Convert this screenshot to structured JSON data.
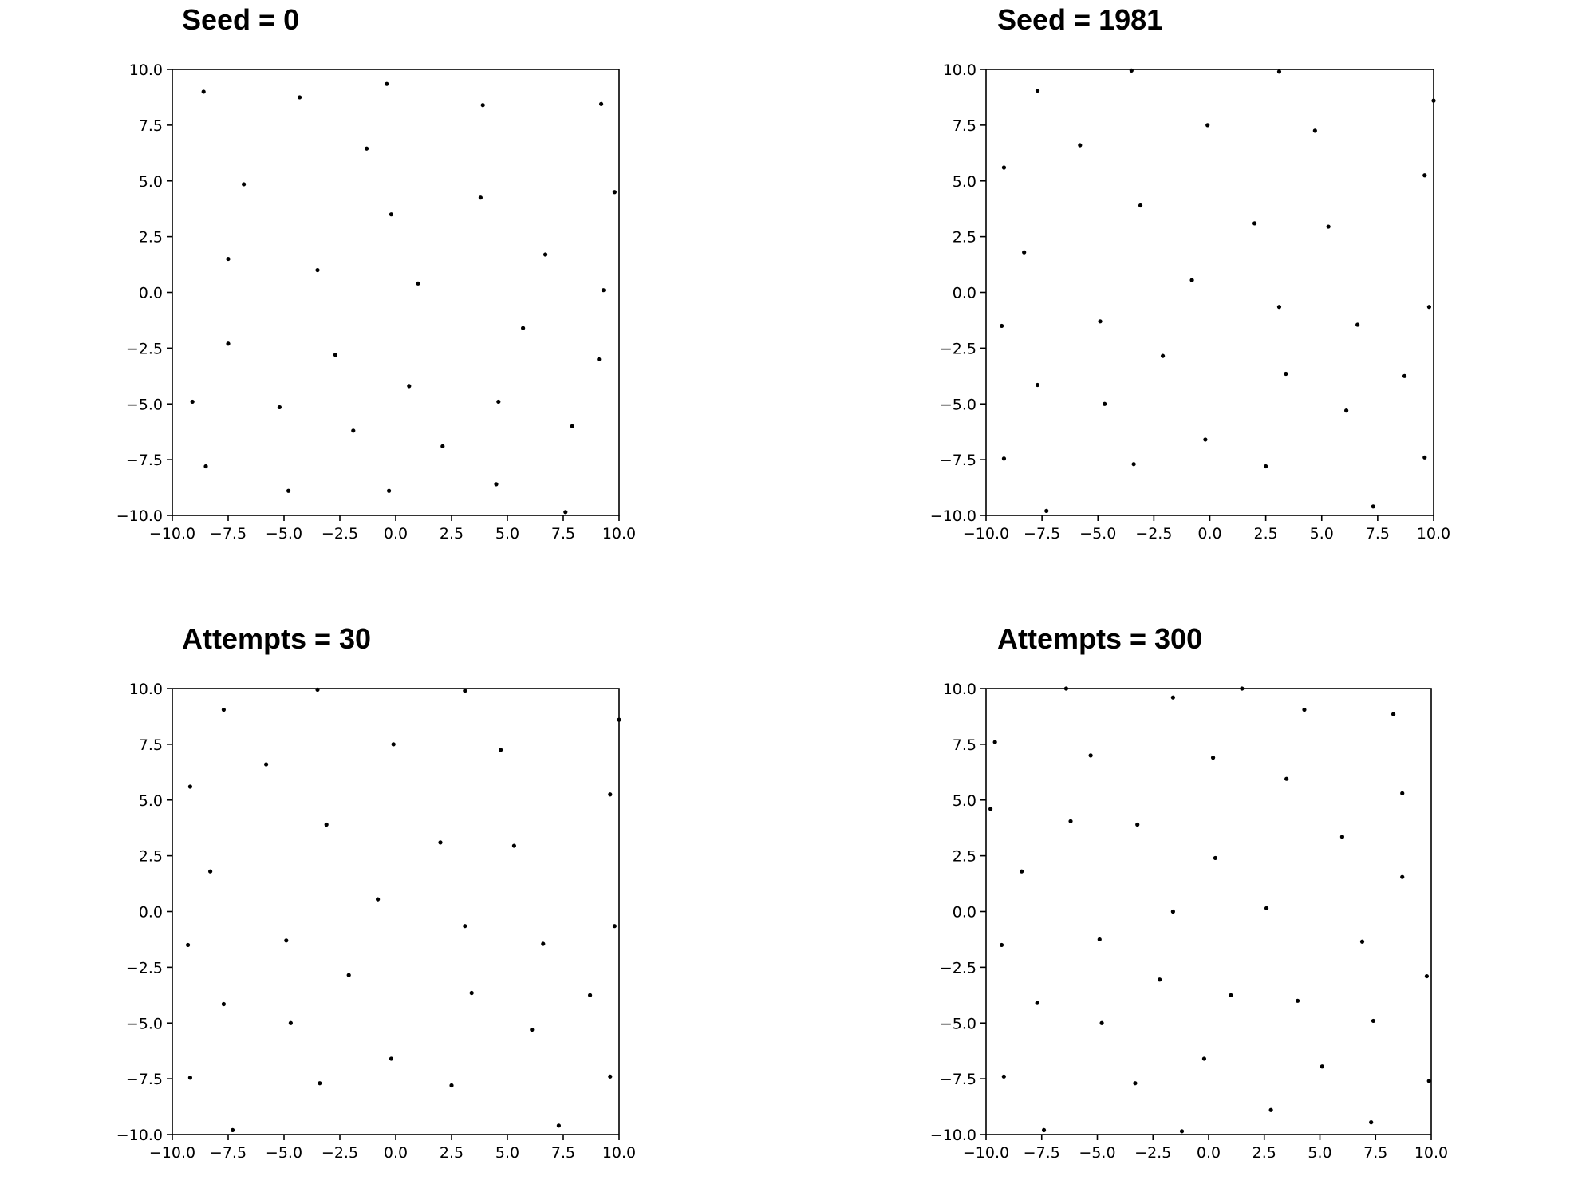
{
  "figure": {
    "panels": [
      {
        "title": "Seed = 0"
      },
      {
        "title": "Seed = 1981"
      },
      {
        "title": "Attempts = 30"
      },
      {
        "title": "Attempts = 300"
      }
    ]
  },
  "chart_data": [
    {
      "type": "scatter",
      "title": "Seed = 0",
      "xlabel": "",
      "ylabel": "",
      "xlim": [
        -10,
        10
      ],
      "ylim": [
        -10,
        10
      ],
      "xticks": [
        -10,
        -7.5,
        -5,
        -2.5,
        0,
        2.5,
        5,
        7.5,
        10
      ],
      "yticks": [
        -10,
        -7.5,
        -5,
        -2.5,
        0,
        2.5,
        5,
        7.5,
        10
      ],
      "tick_labels": [
        "−10.0",
        "−7.5",
        "−5.0",
        "−2.5",
        "0.0",
        "2.5",
        "5.0",
        "7.5",
        "10.0"
      ],
      "grid": false,
      "marker_color": "#000000",
      "points": [
        [
          -8.6,
          9.0
        ],
        [
          -4.3,
          8.75
        ],
        [
          -0.4,
          9.35
        ],
        [
          3.9,
          8.4
        ],
        [
          9.2,
          8.45
        ],
        [
          -1.3,
          6.45
        ],
        [
          -6.8,
          4.85
        ],
        [
          3.8,
          4.25
        ],
        [
          9.8,
          4.5
        ],
        [
          -0.2,
          3.5
        ],
        [
          -7.5,
          1.5
        ],
        [
          6.7,
          1.7
        ],
        [
          -3.5,
          1.0
        ],
        [
          1.0,
          0.4
        ],
        [
          9.3,
          0.1
        ],
        [
          5.7,
          -1.6
        ],
        [
          -7.5,
          -2.3
        ],
        [
          -2.7,
          -2.8
        ],
        [
          9.1,
          -3.0
        ],
        [
          0.6,
          -4.2
        ],
        [
          -9.1,
          -4.9
        ],
        [
          -5.2,
          -5.15
        ],
        [
          4.6,
          -4.9
        ],
        [
          -1.9,
          -6.2
        ],
        [
          7.9,
          -6.0
        ],
        [
          2.1,
          -6.9
        ],
        [
          -8.5,
          -7.8
        ],
        [
          4.5,
          -8.6
        ],
        [
          -4.8,
          -8.9
        ],
        [
          -0.3,
          -8.9
        ],
        [
          7.6,
          -9.85
        ]
      ]
    },
    {
      "type": "scatter",
      "title": "Seed = 1981",
      "xlabel": "",
      "ylabel": "",
      "xlim": [
        -10,
        10
      ],
      "ylim": [
        -10,
        10
      ],
      "xticks": [
        -10,
        -7.5,
        -5,
        -2.5,
        0,
        2.5,
        5,
        7.5,
        10
      ],
      "yticks": [
        -10,
        -7.5,
        -5,
        -2.5,
        0,
        2.5,
        5,
        7.5,
        10
      ],
      "tick_labels": [
        "−10.0",
        "−7.5",
        "−5.0",
        "−2.5",
        "0.0",
        "2.5",
        "5.0",
        "7.5",
        "10.0"
      ],
      "grid": false,
      "marker_color": "#000000",
      "points": [
        [
          -3.5,
          9.95
        ],
        [
          3.1,
          9.9
        ],
        [
          -7.7,
          9.05
        ],
        [
          10.0,
          8.6
        ],
        [
          -0.1,
          7.5
        ],
        [
          4.7,
          7.25
        ],
        [
          -5.8,
          6.6
        ],
        [
          -9.2,
          5.6
        ],
        [
          9.6,
          5.25
        ],
        [
          -3.1,
          3.9
        ],
        [
          2.0,
          3.1
        ],
        [
          5.3,
          2.95
        ],
        [
          -8.3,
          1.8
        ],
        [
          -0.8,
          0.55
        ],
        [
          3.1,
          -0.65
        ],
        [
          9.8,
          -0.65
        ],
        [
          -9.3,
          -1.5
        ],
        [
          -4.9,
          -1.3
        ],
        [
          6.6,
          -1.45
        ],
        [
          -2.1,
          -2.85
        ],
        [
          3.4,
          -3.65
        ],
        [
          8.7,
          -3.75
        ],
        [
          -7.7,
          -4.15
        ],
        [
          -4.7,
          -5.0
        ],
        [
          6.1,
          -5.3
        ],
        [
          -0.2,
          -6.6
        ],
        [
          -9.2,
          -7.45
        ],
        [
          -3.4,
          -7.7
        ],
        [
          2.5,
          -7.8
        ],
        [
          9.6,
          -7.4
        ],
        [
          -7.3,
          -9.8
        ],
        [
          7.3,
          -9.6
        ]
      ]
    },
    {
      "type": "scatter",
      "title": "Attempts = 30",
      "xlabel": "",
      "ylabel": "",
      "xlim": [
        -10,
        10
      ],
      "ylim": [
        -10,
        10
      ],
      "xticks": [
        -10,
        -7.5,
        -5,
        -2.5,
        0,
        2.5,
        5,
        7.5,
        10
      ],
      "yticks": [
        -10,
        -7.5,
        -5,
        -2.5,
        0,
        2.5,
        5,
        7.5,
        10
      ],
      "tick_labels": [
        "−10.0",
        "−7.5",
        "−5.0",
        "−2.5",
        "0.0",
        "2.5",
        "5.0",
        "7.5",
        "10.0"
      ],
      "grid": false,
      "marker_color": "#000000",
      "points": [
        [
          -3.5,
          9.95
        ],
        [
          3.1,
          9.9
        ],
        [
          -7.7,
          9.05
        ],
        [
          10.0,
          8.6
        ],
        [
          -0.1,
          7.5
        ],
        [
          4.7,
          7.25
        ],
        [
          -5.8,
          6.6
        ],
        [
          -9.2,
          5.6
        ],
        [
          9.6,
          5.25
        ],
        [
          -3.1,
          3.9
        ],
        [
          2.0,
          3.1
        ],
        [
          5.3,
          2.95
        ],
        [
          -8.3,
          1.8
        ],
        [
          -0.8,
          0.55
        ],
        [
          3.1,
          -0.65
        ],
        [
          9.8,
          -0.65
        ],
        [
          -9.3,
          -1.5
        ],
        [
          -4.9,
          -1.3
        ],
        [
          6.6,
          -1.45
        ],
        [
          -2.1,
          -2.85
        ],
        [
          3.4,
          -3.65
        ],
        [
          8.7,
          -3.75
        ],
        [
          -7.7,
          -4.15
        ],
        [
          -4.7,
          -5.0
        ],
        [
          6.1,
          -5.3
        ],
        [
          -0.2,
          -6.6
        ],
        [
          -9.2,
          -7.45
        ],
        [
          -3.4,
          -7.7
        ],
        [
          2.5,
          -7.8
        ],
        [
          9.6,
          -7.4
        ],
        [
          -7.3,
          -9.8
        ],
        [
          7.3,
          -9.6
        ]
      ]
    },
    {
      "type": "scatter",
      "title": "Attempts = 300",
      "xlabel": "",
      "ylabel": "",
      "xlim": [
        -10,
        10
      ],
      "ylim": [
        -10,
        10
      ],
      "xticks": [
        -10,
        -7.5,
        -5,
        -2.5,
        0,
        2.5,
        5,
        7.5,
        10
      ],
      "yticks": [
        -10,
        -7.5,
        -5,
        -2.5,
        0,
        2.5,
        5,
        7.5,
        10
      ],
      "tick_labels": [
        "−10.0",
        "−7.5",
        "−5.0",
        "−2.5",
        "0.0",
        "2.5",
        "5.0",
        "7.5",
        "10.0"
      ],
      "grid": false,
      "marker_color": "#000000",
      "points": [
        [
          -6.4,
          10.0
        ],
        [
          1.5,
          10.0
        ],
        [
          -1.6,
          9.6
        ],
        [
          4.3,
          9.05
        ],
        [
          8.3,
          8.85
        ],
        [
          -9.6,
          7.6
        ],
        [
          -5.3,
          7.0
        ],
        [
          0.2,
          6.9
        ],
        [
          3.5,
          5.95
        ],
        [
          -9.8,
          4.6
        ],
        [
          8.7,
          5.3
        ],
        [
          -6.2,
          4.05
        ],
        [
          -3.2,
          3.9
        ],
        [
          6.0,
          3.35
        ],
        [
          0.3,
          2.4
        ],
        [
          -8.4,
          1.8
        ],
        [
          8.7,
          1.55
        ],
        [
          2.6,
          0.15
        ],
        [
          -1.6,
          0.0
        ],
        [
          6.9,
          -1.35
        ],
        [
          -9.3,
          -1.5
        ],
        [
          -4.9,
          -1.25
        ],
        [
          -2.2,
          -3.05
        ],
        [
          1.0,
          -3.75
        ],
        [
          4.0,
          -4.0
        ],
        [
          9.8,
          -2.9
        ],
        [
          -7.7,
          -4.1
        ],
        [
          -4.8,
          -5.0
        ],
        [
          7.4,
          -4.9
        ],
        [
          -0.2,
          -6.6
        ],
        [
          5.1,
          -6.95
        ],
        [
          -9.2,
          -7.4
        ],
        [
          -3.3,
          -7.7
        ],
        [
          9.9,
          -7.6
        ],
        [
          2.8,
          -8.9
        ],
        [
          -7.4,
          -9.8
        ],
        [
          -1.2,
          -9.85
        ],
        [
          7.3,
          -9.45
        ]
      ]
    }
  ]
}
